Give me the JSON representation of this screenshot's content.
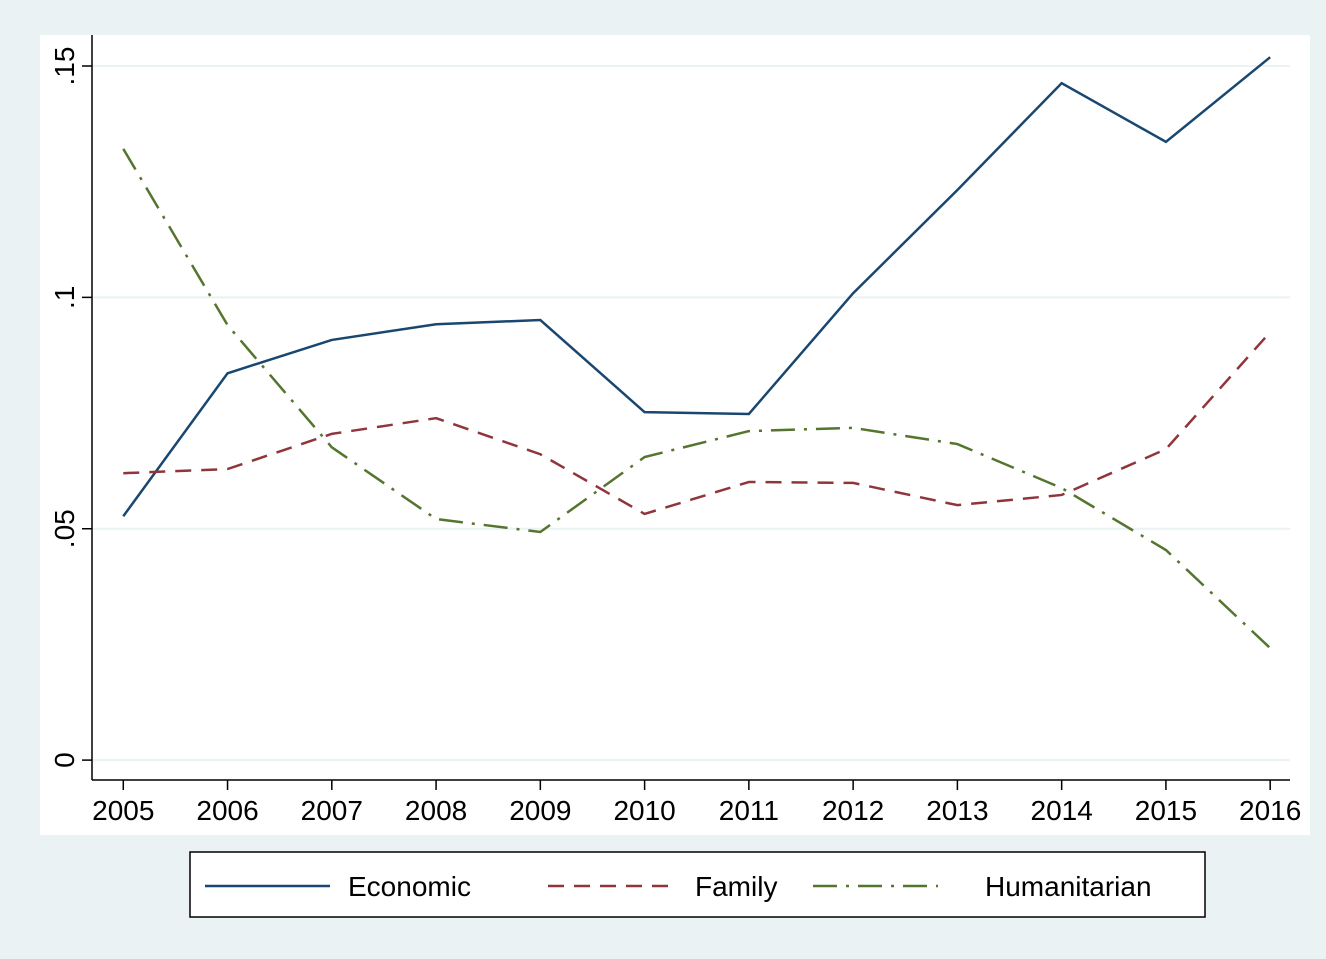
{
  "chart_data": {
    "type": "line",
    "x": [
      2005,
      2006,
      2007,
      2008,
      2009,
      2010,
      2011,
      2012,
      2013,
      2014,
      2015,
      2016
    ],
    "series": [
      {
        "name": "Economic",
        "color": "#1a476f",
        "style": "solid",
        "values": [
          0.0527,
          0.0836,
          0.0908,
          0.0942,
          0.0951,
          0.0752,
          0.0748,
          0.1009,
          0.1232,
          0.1463,
          0.1336,
          0.1519
        ]
      },
      {
        "name": "Family",
        "color": "#90353b",
        "style": "dash",
        "values": [
          0.062,
          0.0629,
          0.0705,
          0.0739,
          0.0661,
          0.0532,
          0.0601,
          0.0599,
          0.0551,
          0.0573,
          0.0672,
          0.0925
        ]
      },
      {
        "name": "Humanitarian",
        "color": "#55752f",
        "style": "dash-dot",
        "values": [
          0.1321,
          0.094,
          0.0676,
          0.0521,
          0.0493,
          0.0655,
          0.0711,
          0.0718,
          0.0683,
          0.0588,
          0.0454,
          0.0242
        ]
      }
    ],
    "xlim": [
      2004.7,
      2016.19
    ],
    "xticks": [
      2005,
      2006,
      2007,
      2008,
      2009,
      2010,
      2011,
      2012,
      2013,
      2014,
      2015,
      2016
    ],
    "ylim": [
      -0.0043,
      0.1567
    ],
    "yticks": [
      0,
      {
        "value": 0.05,
        "label": ".05"
      },
      {
        "value": 0.1,
        "label": ".1"
      },
      {
        "value": 0.15,
        "label": ".15"
      }
    ],
    "grid": true
  }
}
